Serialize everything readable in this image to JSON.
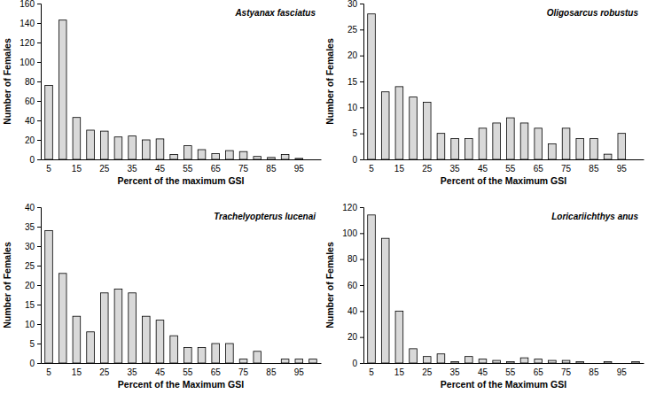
{
  "chart_data": [
    {
      "type": "bar",
      "title": "Astyanax fasciatus",
      "x_label": "Percent of the maximum GSI",
      "y_label": "Number of Females",
      "categories": [
        "5",
        null,
        "15",
        null,
        "25",
        null,
        "35",
        null,
        "45",
        null,
        "55",
        null,
        "65",
        null,
        "75",
        null,
        "85",
        null,
        "95",
        null
      ],
      "values": [
        76,
        143,
        43,
        30,
        29,
        23,
        24,
        20,
        21,
        5,
        14,
        10,
        6,
        9,
        8,
        3,
        2,
        5,
        1,
        0
      ],
      "color": "#d9d9d9",
      "ylim": [
        0,
        160
      ],
      "yticks": [
        0,
        20,
        40,
        60,
        80,
        100,
        120,
        140,
        160
      ]
    },
    {
      "type": "bar",
      "title": "Oligosarcus robustus",
      "x_label": "Percent of the Maximum GSI",
      "y_label": "Number of Females",
      "categories": [
        "5",
        null,
        "15",
        null,
        "25",
        null,
        "35",
        null,
        "45",
        null,
        "55",
        null,
        "65",
        null,
        "75",
        null,
        "85",
        null,
        "95",
        null
      ],
      "values": [
        28,
        13,
        14,
        12,
        11,
        5,
        4,
        4,
        6,
        7,
        8,
        7,
        6,
        3,
        6,
        4,
        4,
        1,
        5,
        0
      ],
      "color": "#d9d9d9",
      "ylim": [
        0,
        30
      ],
      "yticks": [
        0,
        5,
        10,
        15,
        20,
        25,
        30
      ]
    },
    {
      "type": "bar",
      "title": "Trachelyopterus lucenai",
      "x_label": "Percent of the Maximum GSI",
      "y_label": "Number of Females",
      "categories": [
        "5",
        null,
        "15",
        null,
        "25",
        null,
        "35",
        null,
        "45",
        null,
        "55",
        null,
        "65",
        null,
        "75",
        null,
        "85",
        null,
        "95",
        null
      ],
      "values": [
        34,
        23,
        12,
        8,
        18,
        19,
        18,
        12,
        11,
        7,
        4,
        4,
        5,
        5,
        1,
        3,
        0,
        1,
        1,
        1
      ],
      "color": "#d9d9d9",
      "ylim": [
        0,
        40
      ],
      "yticks": [
        0,
        5,
        10,
        15,
        20,
        25,
        30,
        35,
        40
      ]
    },
    {
      "type": "bar",
      "title": "Loricariichthys anus",
      "x_label": "Percent of the Maximum GSI",
      "y_label": "Number of Females",
      "categories": [
        "5",
        null,
        "15",
        null,
        "25",
        null,
        "35",
        null,
        "45",
        null,
        "55",
        null,
        "65",
        null,
        "75",
        null,
        "85",
        null,
        "95",
        null
      ],
      "values": [
        114,
        96,
        40,
        11,
        5,
        7,
        1,
        5,
        3,
        2,
        1,
        4,
        3,
        2,
        2,
        1,
        0,
        1,
        0,
        1
      ],
      "color": "#d9d9d9",
      "ylim": [
        0,
        120
      ],
      "yticks": [
        0,
        20,
        40,
        60,
        80,
        100,
        120
      ]
    }
  ]
}
